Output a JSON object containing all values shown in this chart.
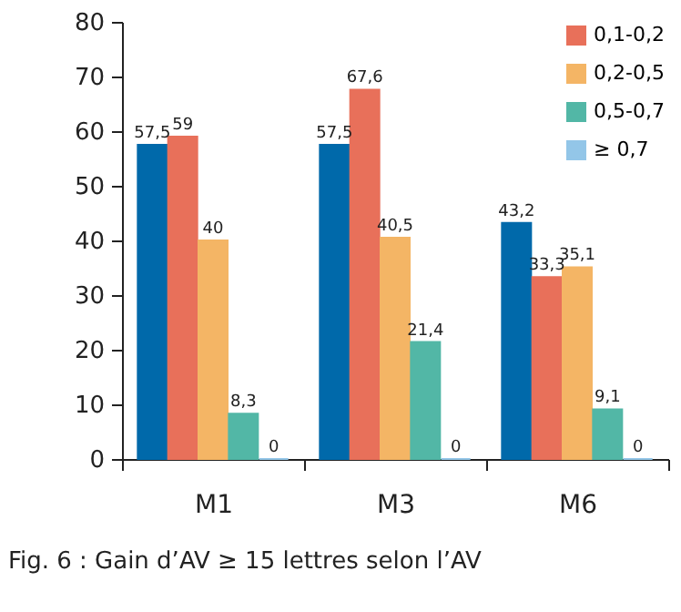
{
  "chart_data": {
    "type": "bar",
    "categories": [
      "M1",
      "M3",
      "M6"
    ],
    "series": [
      {
        "color": "#0069aa",
        "values": [
          57.5,
          57.5,
          43.2
        ],
        "value_labels": [
          "57,5",
          "57,5",
          "43,2"
        ]
      },
      {
        "name": "0,1-0,2",
        "color": "#e8705a",
        "values": [
          59,
          67.6,
          33.3
        ],
        "value_labels": [
          "59",
          "67,6",
          "33,3"
        ]
      },
      {
        "name": "0,2-0,5",
        "color": "#f4b565",
        "values": [
          40,
          40.5,
          35.1
        ],
        "value_labels": [
          "40",
          "40,5",
          "35,1"
        ]
      },
      {
        "name": "0,5-0,7",
        "color": "#52b7a6",
        "values": [
          8.3,
          21.4,
          9.1
        ],
        "value_labels": [
          "8,3",
          "21,4",
          "9,1"
        ]
      },
      {
        "name": "≥ 0,7",
        "color": "#93c6e8",
        "values": [
          0,
          0,
          0
        ],
        "value_labels": [
          "0",
          "0",
          "0"
        ]
      }
    ],
    "ylim": [
      0,
      80
    ],
    "yticks": [
      0,
      10,
      20,
      30,
      40,
      50,
      60,
      70,
      80
    ],
    "grid": false,
    "legend": "top right",
    "annotations": [
      "Fig. 6 : Gain d’AV ≥ 15 lettres selon l’AV"
    ]
  }
}
